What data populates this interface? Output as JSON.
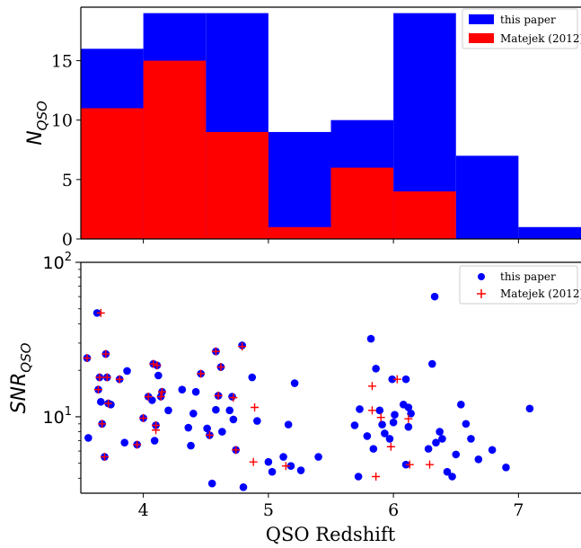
{
  "chart_data": [
    {
      "type": "histogram",
      "xlabel": "",
      "ylabel": "N",
      "ylabel_sub": "QSO",
      "xlim": [
        3.5,
        7.5
      ],
      "ylim": [
        0,
        19.5
      ],
      "bin_edges": [
        3.5,
        4.0,
        4.5,
        5.0,
        5.5,
        6.0,
        6.5,
        7.0,
        7.5
      ],
      "yticks": [
        0,
        5,
        10,
        15
      ],
      "xticks": [
        4,
        5,
        6,
        7
      ],
      "legend_position": "top-right",
      "series": [
        {
          "name": "this paper",
          "color": "#0000ff",
          "counts": [
            16,
            19,
            19,
            9,
            10,
            19,
            7,
            1
          ]
        },
        {
          "name": "Matejek (2012)",
          "color": "#ff0000",
          "counts": [
            11,
            15,
            9,
            1,
            6,
            4,
            0,
            0
          ]
        }
      ]
    },
    {
      "type": "scatter",
      "xlabel": "QSO Redshift",
      "ylabel": "SNR",
      "ylabel_sub": "QSO",
      "yscale": "log",
      "xlim": [
        3.5,
        7.5
      ],
      "ylim": [
        3.2,
        100
      ],
      "xticks": [
        "4",
        "5",
        "6",
        "7"
      ],
      "ytick_labels": [
        {
          "value": 10,
          "base": "10",
          "exp": "1"
        },
        {
          "value": 100,
          "base": "10",
          "exp": "2"
        }
      ],
      "legend_position": "top-right",
      "series": [
        {
          "name": "this paper",
          "color": "#0000ff",
          "marker": "circle",
          "points": [
            [
              3.55,
              24
            ],
            [
              3.56,
              7.3
            ],
            [
              3.63,
              47
            ],
            [
              3.64,
              15
            ],
            [
              3.65,
              18
            ],
            [
              3.66,
              12.5
            ],
            [
              3.67,
              9
            ],
            [
              3.69,
              5.5
            ],
            [
              3.7,
              25.5
            ],
            [
              3.72,
              12.2
            ],
            [
              3.71,
              18
            ],
            [
              3.74,
              12
            ],
            [
              3.81,
              17.5
            ],
            [
              3.85,
              6.8
            ],
            [
              3.87,
              19.8
            ],
            [
              3.95,
              6.6
            ],
            [
              4.0,
              9.8
            ],
            [
              4.04,
              13.5
            ],
            [
              4.08,
              22
            ],
            [
              4.07,
              12.8
            ],
            [
              4.1,
              8.8
            ],
            [
              4.09,
              7
            ],
            [
              4.11,
              21.5
            ],
            [
              4.12,
              18.5
            ],
            [
              4.14,
              13.5
            ],
            [
              4.15,
              14.5
            ],
            [
              4.2,
              11
            ],
            [
              4.31,
              15
            ],
            [
              4.36,
              8.5
            ],
            [
              4.38,
              6.5
            ],
            [
              4.4,
              10.5
            ],
            [
              4.42,
              14.5
            ],
            [
              4.46,
              19
            ],
            [
              4.51,
              8.4
            ],
            [
              4.53,
              7.6
            ],
            [
              4.55,
              3.7
            ],
            [
              4.58,
              11.1
            ],
            [
              4.58,
              26.5
            ],
            [
              4.6,
              13.7
            ],
            [
              4.62,
              21
            ],
            [
              4.63,
              8
            ],
            [
              4.69,
              11
            ],
            [
              4.71,
              13.5
            ],
            [
              4.72,
              9.6
            ],
            [
              4.74,
              6.1
            ],
            [
              4.79,
              29
            ],
            [
              4.8,
              3.5
            ],
            [
              4.87,
              18
            ],
            [
              4.91,
              9.4
            ],
            [
              5.0,
              5.1
            ],
            [
              5.03,
              4.4
            ],
            [
              5.12,
              5.5
            ],
            [
              5.16,
              8.9
            ],
            [
              5.18,
              4.8
            ],
            [
              5.21,
              16.5
            ],
            [
              5.26,
              4.5
            ],
            [
              5.4,
              5.5
            ],
            [
              5.69,
              8.8
            ],
            [
              5.72,
              4.1
            ],
            [
              5.73,
              11.2
            ],
            [
              5.79,
              7.5
            ],
            [
              5.82,
              32
            ],
            [
              5.84,
              6.2
            ],
            [
              5.86,
              20.5
            ],
            [
              5.89,
              11
            ],
            [
              5.91,
              8.9
            ],
            [
              5.93,
              7.8
            ],
            [
              5.97,
              7.2
            ],
            [
              5.99,
              17.5
            ],
            [
              6.0,
              9.2
            ],
            [
              6.01,
              10.3
            ],
            [
              6.08,
              12
            ],
            [
              6.1,
              17.5
            ],
            [
              6.1,
              4.9
            ],
            [
              6.12,
              11.5
            ],
            [
              6.12,
              8.6
            ],
            [
              6.14,
              10.5
            ],
            [
              6.28,
              6.2
            ],
            [
              6.31,
              22
            ],
            [
              6.33,
              60
            ],
            [
              6.34,
              6.8
            ],
            [
              6.37,
              8
            ],
            [
              6.39,
              7.2
            ],
            [
              6.43,
              4.4
            ],
            [
              6.47,
              4.1
            ],
            [
              6.5,
              5.7
            ],
            [
              6.54,
              12
            ],
            [
              6.58,
              9
            ],
            [
              6.62,
              7.2
            ],
            [
              6.68,
              5.3
            ],
            [
              6.79,
              6.1
            ],
            [
              6.9,
              4.7
            ],
            [
              7.09,
              11.3
            ]
          ]
        },
        {
          "name": "Matejek (2012)",
          "color": "#ff0000",
          "marker": "plus",
          "points": [
            [
              3.55,
              24
            ],
            [
              3.66,
              47
            ],
            [
              3.64,
              15
            ],
            [
              3.65,
              18
            ],
            [
              3.67,
              9
            ],
            [
              3.69,
              5.5
            ],
            [
              3.7,
              25.5
            ],
            [
              3.72,
              12.2
            ],
            [
              3.71,
              18
            ],
            [
              3.81,
              17.5
            ],
            [
              3.95,
              6.6
            ],
            [
              4.0,
              9.8
            ],
            [
              4.04,
              13.5
            ],
            [
              4.08,
              22
            ],
            [
              4.1,
              8.8
            ],
            [
              4.1,
              8.2
            ],
            [
              4.11,
              21.5
            ],
            [
              4.14,
              13.5
            ],
            [
              4.15,
              14.5
            ],
            [
              4.46,
              19
            ],
            [
              4.53,
              7.6
            ],
            [
              4.58,
              26.5
            ],
            [
              4.6,
              13.7
            ],
            [
              4.62,
              21
            ],
            [
              4.72,
              13.3
            ],
            [
              4.74,
              6.1
            ],
            [
              4.79,
              28.5
            ],
            [
              4.88,
              5.1
            ],
            [
              4.89,
              11.5
            ],
            [
              5.14,
              4.8
            ],
            [
              5.83,
              15.8
            ],
            [
              5.83,
              11
            ],
            [
              5.86,
              4.1
            ],
            [
              5.9,
              9.9
            ],
            [
              5.98,
              6.4
            ],
            [
              6.03,
              17.5
            ],
            [
              6.12,
              9.7
            ],
            [
              6.13,
              4.9
            ],
            [
              6.29,
              4.9
            ]
          ]
        }
      ]
    }
  ]
}
